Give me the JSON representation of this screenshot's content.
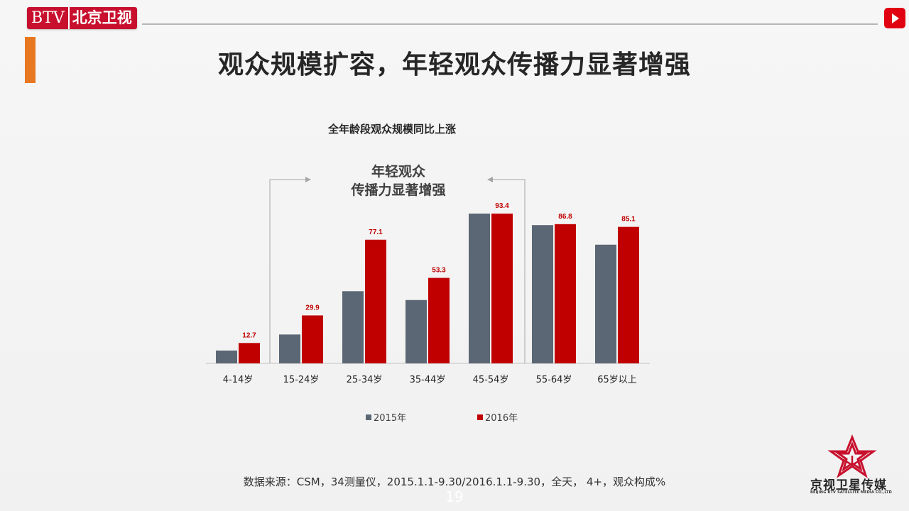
{
  "header": {
    "logo_btv": "BTV",
    "logo_cn": "北京卫视"
  },
  "title": "观众规模扩容，年轻观众传播力显著增强",
  "chart_data": {
    "type": "bar",
    "title": "全年龄段观众规模同比上涨",
    "annotation": [
      "年轻观众",
      "传播力显著增强"
    ],
    "categories": [
      "4-14岁",
      "15-24岁",
      "25-34岁",
      "35-44岁",
      "45-54岁",
      "55-64岁",
      "65岁以上"
    ],
    "series": [
      {
        "name": "2015年",
        "values": [
          8,
          18,
          45,
          39.5,
          93.4,
          86.2,
          74
        ],
        "labeled": false
      },
      {
        "name": "2016年",
        "values": [
          12.7,
          29.9,
          77.1,
          53.3,
          93.4,
          86.8,
          85.1
        ],
        "labeled": true
      }
    ],
    "ylim": [
      0,
      100
    ],
    "grid": false,
    "legend": "bottom",
    "colors": [
      "#5b6774",
      "#c00000"
    ]
  },
  "footer": {
    "source": "数据来源：CSM，34测量仪，2015.1.1-9.30/2016.1.1-9.30，全天， 4+，观众构成%",
    "page_number": "19"
  },
  "brand": {
    "name": "京视卫星传媒",
    "sub": "BEIJING BTV SATELLITE MEDIA CO.,LTD"
  }
}
